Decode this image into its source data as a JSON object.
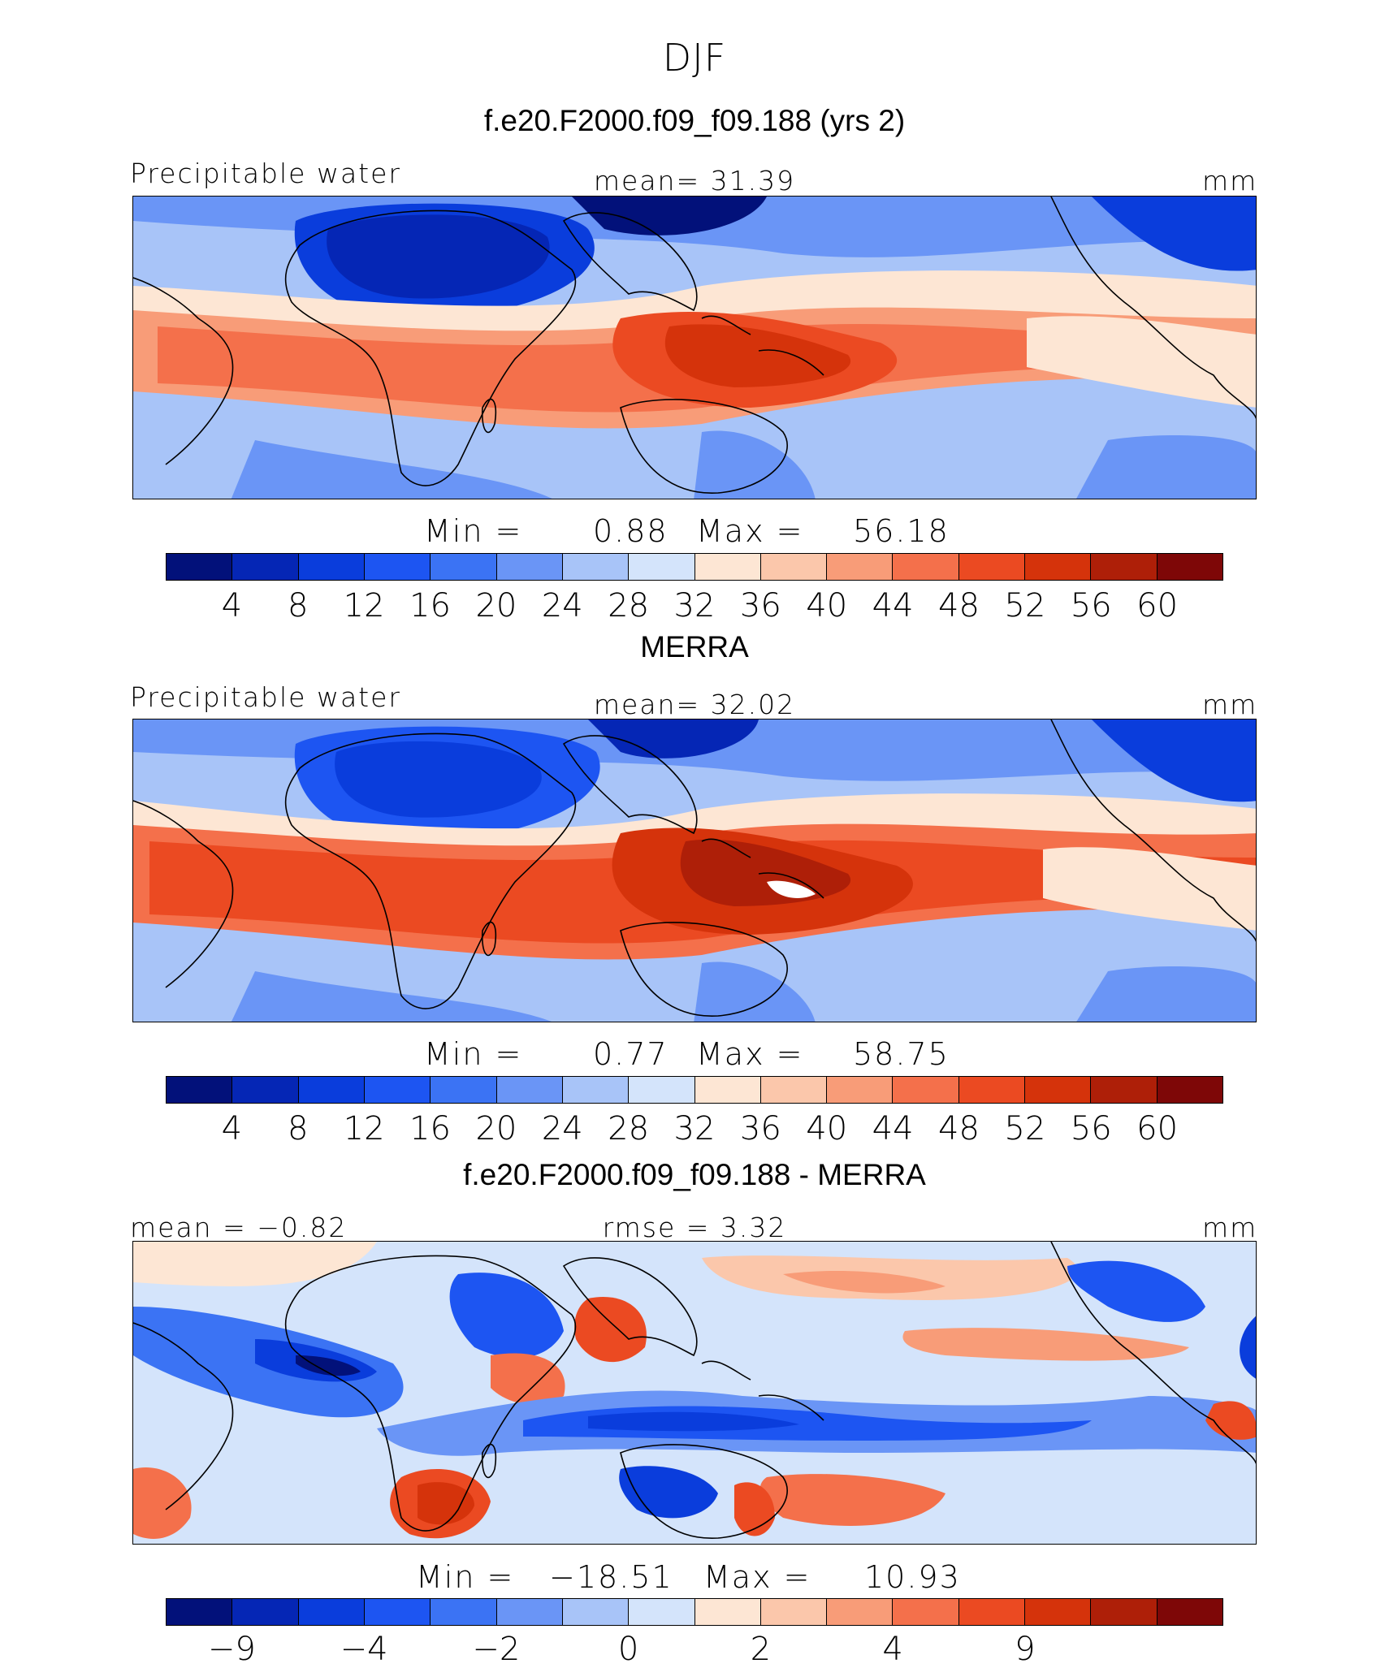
{
  "season": "DJF",
  "panels": [
    {
      "title": "f.e20.F2000.f09_f09.188 (yrs 2)",
      "left_label": "Precipitable water",
      "center_label": "mean=   31.39",
      "right_label": "mm",
      "min_label": "Min  =",
      "min_value": "0.88",
      "max_label": "Max  =",
      "max_value": "56.18",
      "colorbar_ticks": [
        "4",
        "8",
        "12",
        "16",
        "20",
        "24",
        "28",
        "32",
        "36",
        "40",
        "44",
        "48",
        "52",
        "56",
        "60"
      ]
    },
    {
      "title": "MERRA",
      "left_label": "Precipitable water",
      "center_label": "mean=   32.02",
      "right_label": "mm",
      "min_label": "Min  =",
      "min_value": "0.77",
      "max_label": "Max  =",
      "max_value": "58.75",
      "colorbar_ticks": [
        "4",
        "8",
        "12",
        "16",
        "20",
        "24",
        "28",
        "32",
        "36",
        "40",
        "44",
        "48",
        "52",
        "56",
        "60"
      ]
    },
    {
      "title": "f.e20.F2000.f09_f09.188 - MERRA",
      "left_label": "mean  =   −0.82",
      "center_label": "rmse  =    3.32",
      "right_label": "mm",
      "min_label": "Min  =",
      "min_value": "−18.51",
      "max_label": "Max  =",
      "max_value": "10.93",
      "colorbar_ticks": [
        "−9",
        "−4",
        "−2",
        "0",
        "2",
        "4",
        "9"
      ]
    }
  ],
  "colorbar_colors": [
    "#02117a",
    "#0526b5",
    "#0a3ddc",
    "#1d55f2",
    "#3b73f4",
    "#6a95f6",
    "#a8c4f8",
    "#d4e4fb",
    "#fde6d4",
    "#fbc7ab",
    "#f89c78",
    "#f4704b",
    "#eb4a22",
    "#d5330b",
    "#ae1f08",
    "#7e0707"
  ],
  "colors": {
    "dry_deep": "#02117a",
    "dry": "#1d55f2",
    "mid_dry": "#a8c4f8",
    "neutral": "#fde6d4",
    "wet": "#f4704b",
    "wet_deep": "#d5330b",
    "coastline": "#000000"
  }
}
